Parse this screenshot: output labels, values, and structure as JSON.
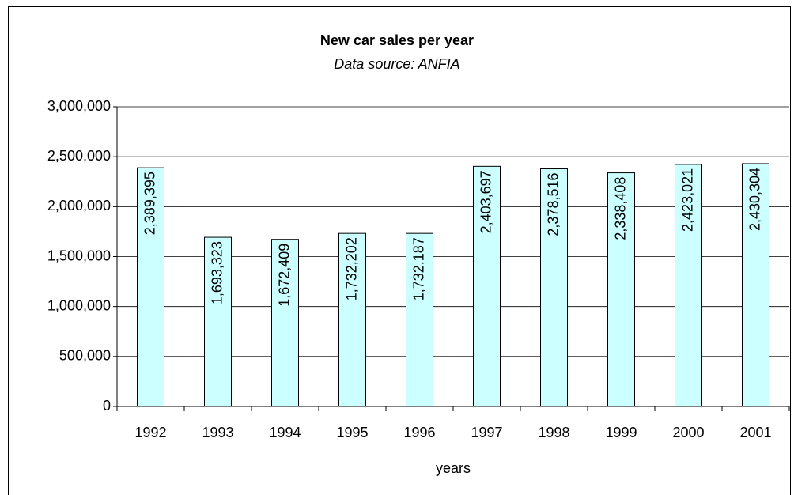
{
  "chart_data": {
    "type": "bar",
    "title": "New car sales per year",
    "subtitle": "Data source: ANFIA",
    "x_label": "years",
    "categories": [
      "1992",
      "1993",
      "1994",
      "1995",
      "1996",
      "1997",
      "1998",
      "1999",
      "2000",
      "2001"
    ],
    "values": [
      2389395,
      1693323,
      1672409,
      1732202,
      1732187,
      2403697,
      2378516,
      2338408,
      2423021,
      2430304
    ],
    "value_labels": [
      "2,389,395",
      "1,693,323",
      "1,672,409",
      "1,732,202",
      "1,732,187",
      "2,403,697",
      "2,378,516",
      "2,338,408",
      "2,423,021",
      "2,430,304"
    ],
    "color": "#ccffff",
    "ylim": [
      0,
      3000000
    ],
    "yticks": [
      0,
      {
        "value": 500000,
        "label": "500,000"
      },
      {
        "value": 1000000,
        "label": "1,000,000"
      },
      {
        "value": 1500000,
        "label": "1,500,000"
      },
      {
        "value": 2000000,
        "label": "2,000,000"
      },
      {
        "value": 2500000,
        "label": "2,500,000"
      },
      {
        "value": 3000000,
        "label": "3,000,000"
      }
    ],
    "grid": true
  }
}
